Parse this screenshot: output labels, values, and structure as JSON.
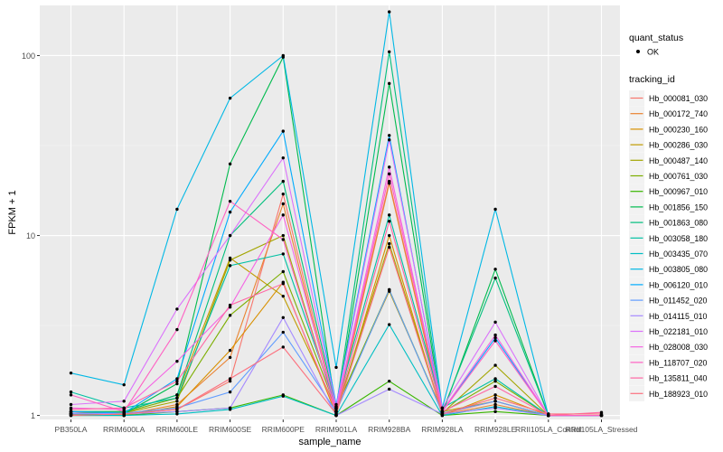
{
  "chart_data": {
    "type": "line",
    "xlabel": "sample_name",
    "ylabel": "FPKM + 1",
    "y_scale": "log10",
    "ylim": [
      0.95,
      190
    ],
    "y_ticks": [
      1,
      10,
      100
    ],
    "y_tick_labels": [
      "1",
      "10",
      "100"
    ],
    "categories": [
      "PB350LA",
      "RRIM600LA",
      "RRIM600LE",
      "RRIM600SE",
      "RRIM600PE",
      "RRIM901LA",
      "RRIM928BA",
      "RRIM928LA",
      "RRIM928LE",
      "RRII105LA_Control",
      "RRII105LA_Stressed"
    ],
    "legend": {
      "position": "right",
      "point_title": "quant_status",
      "point_label": "OK",
      "line_title": "tracking_id"
    },
    "series": [
      {
        "name": "Hb_000081_030",
        "color": "#F8766D",
        "values": [
          1.05,
          1.02,
          1.08,
          1.55,
          17.0,
          1.05,
          20.0,
          1.02,
          1.2,
          1.0,
          1.0
        ]
      },
      {
        "name": "Hb_000172_740",
        "color": "#EA8331",
        "values": [
          1.02,
          1.01,
          1.15,
          2.1,
          15.0,
          1.02,
          19.5,
          1.01,
          1.15,
          1.0,
          1.0
        ]
      },
      {
        "name": "Hb_000230_160",
        "color": "#D89000",
        "values": [
          1.01,
          1.0,
          1.12,
          2.3,
          5.5,
          1.01,
          10.0,
          1.0,
          1.3,
          1.0,
          1.0
        ]
      },
      {
        "name": "Hb_000286_030",
        "color": "#C09B00",
        "values": [
          1.05,
          1.05,
          1.3,
          7.5,
          4.6,
          1.1,
          4.9,
          1.05,
          1.2,
          1.0,
          1.0
        ]
      },
      {
        "name": "Hb_000487_140",
        "color": "#A3A500",
        "values": [
          1.02,
          1.03,
          1.2,
          7.3,
          10.0,
          1.05,
          9.0,
          1.03,
          1.9,
          1.0,
          1.0
        ]
      },
      {
        "name": "Hb_000761_030",
        "color": "#7CAE00",
        "values": [
          1.03,
          1.04,
          1.25,
          3.6,
          6.3,
          1.1,
          5.0,
          1.04,
          1.55,
          1.0,
          1.0
        ]
      },
      {
        "name": "Hb_000967_010",
        "color": "#39B600",
        "values": [
          1.0,
          1.0,
          1.05,
          1.1,
          1.3,
          1.0,
          1.55,
          1.0,
          1.05,
          1.0,
          1.0
        ]
      },
      {
        "name": "Hb_001856_150",
        "color": "#00BB4E",
        "values": [
          1.02,
          1.02,
          1.5,
          25.0,
          98.0,
          1.05,
          70.0,
          1.02,
          6.5,
          1.0,
          1.0
        ]
      },
      {
        "name": "Hb_001863_080",
        "color": "#00BF7D",
        "values": [
          1.05,
          1.05,
          1.3,
          10.0,
          20.0,
          1.1,
          105.0,
          1.05,
          5.8,
          1.0,
          1.0
        ]
      },
      {
        "name": "Hb_003058_180",
        "color": "#00C1A3",
        "values": [
          1.35,
          1.1,
          1.25,
          6.8,
          7.9,
          1.12,
          13.0,
          1.1,
          1.6,
          1.0,
          1.0
        ]
      },
      {
        "name": "Hb_003435_070",
        "color": "#00BFC4",
        "values": [
          1.0,
          1.0,
          1.02,
          1.08,
          1.28,
          1.0,
          3.2,
          1.0,
          1.12,
          1.0,
          1.0
        ]
      },
      {
        "name": "Hb_003805_080",
        "color": "#00B8E5",
        "values": [
          1.72,
          1.48,
          14.0,
          58.0,
          100.0,
          1.85,
          175.0,
          1.1,
          14.0,
          1.0,
          1.0
        ]
      },
      {
        "name": "Hb_006120_010",
        "color": "#00ABFD",
        "values": [
          1.05,
          1.03,
          1.6,
          13.5,
          38.0,
          1.15,
          36.0,
          1.05,
          2.7,
          1.0,
          1.0
        ]
      },
      {
        "name": "Hb_011452_020",
        "color": "#619CFF",
        "values": [
          1.02,
          1.03,
          1.1,
          1.35,
          2.9,
          1.05,
          5.0,
          1.03,
          1.2,
          1.0,
          1.0
        ]
      },
      {
        "name": "Hb_014115_010",
        "color": "#A58AFF",
        "values": [
          1.03,
          1.02,
          1.05,
          1.1,
          3.5,
          1.0,
          1.4,
          1.02,
          1.1,
          1.0,
          1.0
        ]
      },
      {
        "name": "Hb_022181_010",
        "color": "#DB72FB",
        "values": [
          1.15,
          1.2,
          3.9,
          10.0,
          27.0,
          1.12,
          34.0,
          1.1,
          3.3,
          1.0,
          1.0
        ]
      },
      {
        "name": "Hb_028008_030",
        "color": "#F564E3",
        "values": [
          1.1,
          1.08,
          2.0,
          4.0,
          13.0,
          1.08,
          24.0,
          1.06,
          2.8,
          1.0,
          1.0
        ]
      },
      {
        "name": "Hb_118707_020",
        "color": "#FF61C3",
        "values": [
          1.3,
          1.05,
          3.0,
          15.5,
          9.5,
          1.05,
          22.0,
          1.05,
          2.6,
          1.0,
          1.0
        ]
      },
      {
        "name": "Hb_135811_040",
        "color": "#FF67A4",
        "values": [
          1.08,
          1.1,
          1.55,
          4.1,
          5.4,
          1.05,
          12.0,
          1.05,
          1.45,
          1.0,
          1.04
        ]
      },
      {
        "name": "Hb_188923_010",
        "color": "#FC717F",
        "values": [
          1.0,
          1.02,
          1.08,
          1.6,
          2.4,
          1.02,
          8.6,
          1.02,
          1.25,
          1.02,
          1.02
        ]
      }
    ]
  }
}
